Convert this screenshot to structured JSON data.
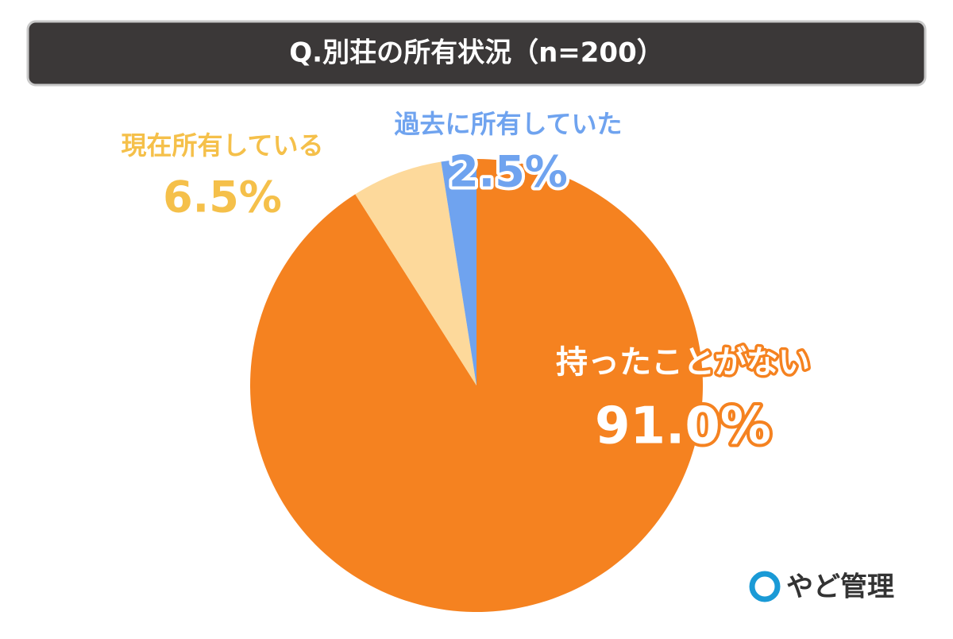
{
  "chart_data": {
    "type": "pie",
    "title": "Q.別荘の所有状況（n=200）",
    "categories": [
      "持ったことがない",
      "現在所有している",
      "過去に所有していた"
    ],
    "values": [
      91.0,
      6.5,
      2.5
    ],
    "value_labels": [
      "91.0%",
      "6.5%",
      "2.5%"
    ],
    "colors": [
      "#f58220",
      "#fdd99b",
      "#6fa3ef"
    ],
    "label_colors": [
      "#ffffff",
      "#f5c04a",
      "#6fa3ef"
    ]
  },
  "logo": "やど管理"
}
